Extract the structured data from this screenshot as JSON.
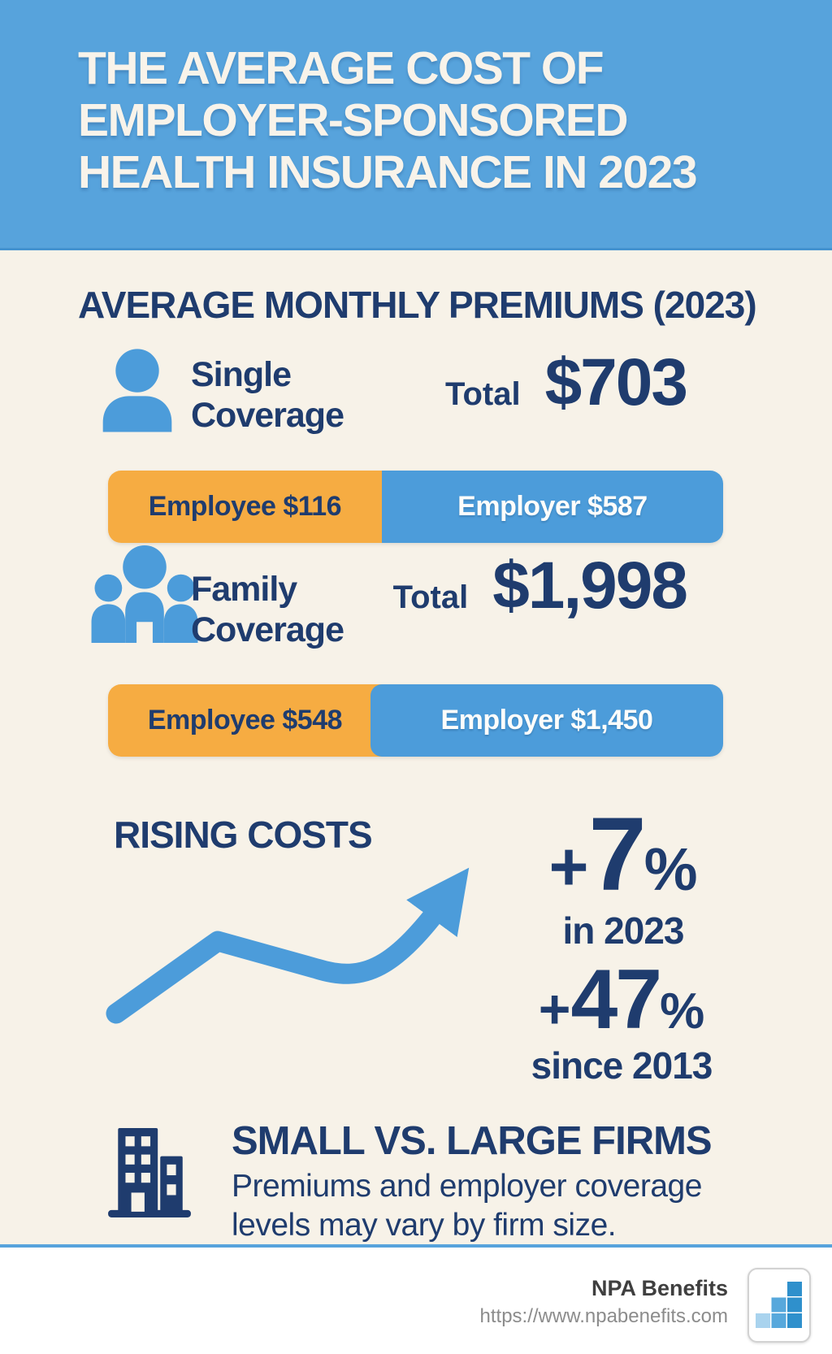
{
  "colors": {
    "header_blue": "#57A3DC",
    "body_cream": "#F7F2E8",
    "navy_text": "#1F3C6E",
    "employee_orange": "#F6AC42",
    "employer_blue": "#4C9CDA",
    "footer_divider_blue": "#57A3DC",
    "brand_text_gray": "#3F3F3F",
    "url_gray": "#8C8C8C",
    "logo_light_blue": "#A9D3EE",
    "logo_mid_blue": "#57A8DC",
    "logo_dark_blue": "#2F90CC"
  },
  "icons": {
    "single": "person-icon",
    "family": "family-icon",
    "rising": "trend-arrow-up-icon",
    "firms": "buildings-icon",
    "logo": "bar-chart-logo-icon"
  },
  "header": {
    "title_line1": "THE AVERAGE COST OF",
    "title_line2": "EMPLOYER-SPONSORED",
    "title_line3": "HEALTH INSURANCE IN 2023"
  },
  "premiums": {
    "heading": "AVERAGE MONTHLY PREMIUMS (2023)",
    "single": {
      "label_line1": "Single",
      "label_line2": "Coverage",
      "total_label": "Total",
      "total_value": "$703",
      "employee_label": "Employee $116",
      "employer_label": "Employer $587",
      "employee_pct": 44.5
    },
    "family": {
      "label_line1": "Family",
      "label_line2": "Coverage",
      "total_label": "Total",
      "total_value": "$1,998",
      "employee_label": "Employee $548",
      "employer_label": "Employer $1,450",
      "employee_pct": 44.5
    }
  },
  "rising": {
    "heading": "RISING COSTS",
    "stat_2023": {
      "plus": "+",
      "number": "7",
      "percent": "%",
      "caption": "in 2023"
    },
    "stat_2013": {
      "plus": "+",
      "number": "47",
      "percent": "%",
      "caption": "since 2013"
    }
  },
  "firms": {
    "heading": "SMALL VS. LARGE FIRMS",
    "body_line1": "Premiums and employer coverage",
    "body_line2": "levels may vary by firm size."
  },
  "footer": {
    "brand": "NPA Benefits",
    "url": "https://www.npabenefits.com"
  },
  "chart_data": [
    {
      "type": "bar",
      "stacked": true,
      "orientation": "horizontal",
      "title": "Average Monthly Premiums (2023), $ per month",
      "categories": [
        "Single Coverage",
        "Family Coverage"
      ],
      "series": [
        {
          "name": "Employee",
          "values": [
            116,
            548
          ]
        },
        {
          "name": "Employer",
          "values": [
            587,
            1450
          ]
        }
      ],
      "totals": [
        703,
        1998
      ],
      "legend_position": "in-bar",
      "grid": false
    },
    {
      "type": "line",
      "title": "Rising Costs",
      "annotations": [
        "+7% in 2023",
        "+47% since 2013"
      ]
    }
  ]
}
